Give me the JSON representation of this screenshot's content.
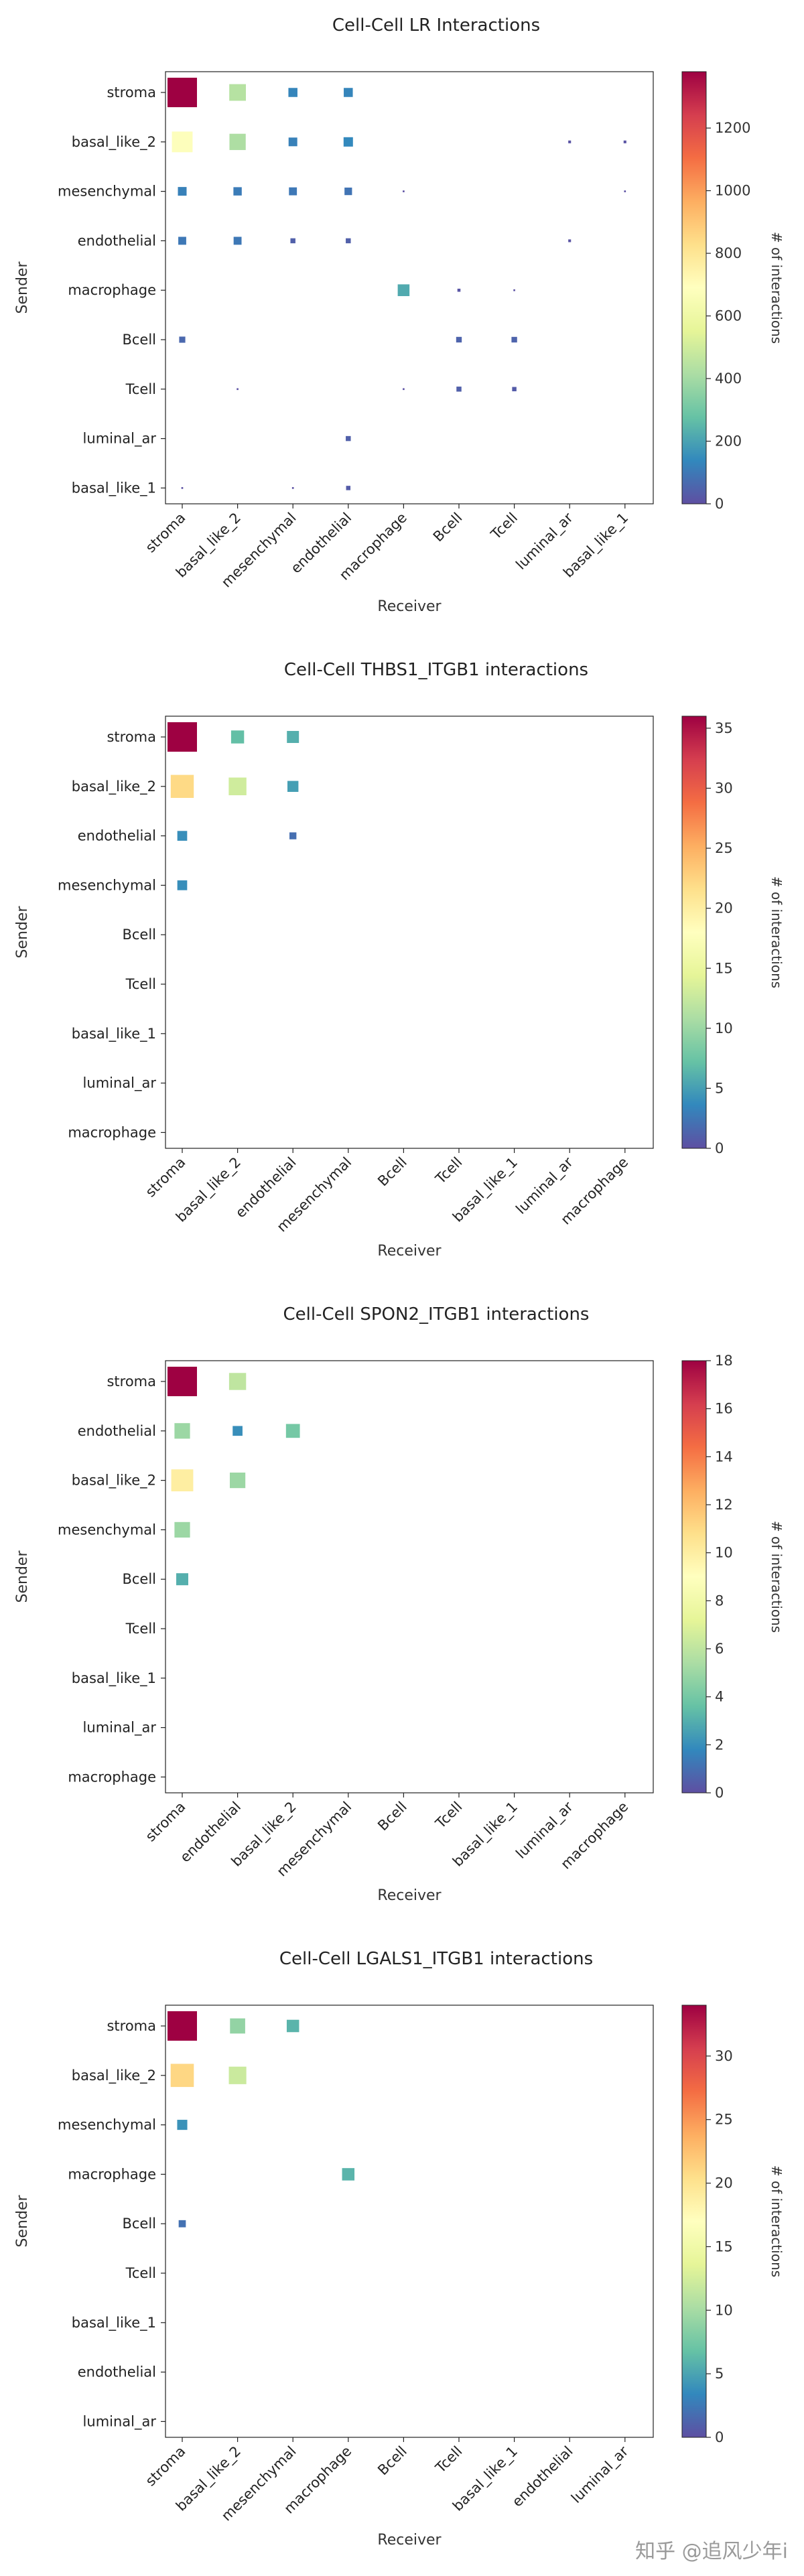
{
  "chart_data": [
    {
      "type": "heatmap",
      "title": "Cell-Cell LR Interactions",
      "xlabel": "Receiver",
      "ylabel": "Sender",
      "colorbar_label": "# of interactions",
      "colorbar_ticks": [
        0,
        200,
        400,
        600,
        800,
        1000,
        1200
      ],
      "vmax": 1380,
      "senders": [
        "stroma",
        "basal_like_2",
        "mesenchymal",
        "endothelial",
        "macrophage",
        "Bcell",
        "Tcell",
        "luminal_ar",
        "basal_like_1"
      ],
      "receivers": [
        "stroma",
        "basal_like_2",
        "mesenchymal",
        "endothelial",
        "macrophage",
        "Bcell",
        "Tcell",
        "luminal_ar",
        "basal_like_1"
      ],
      "cells": [
        [
          0,
          0,
          1380
        ],
        [
          0,
          1,
          440
        ],
        [
          0,
          2,
          130
        ],
        [
          0,
          3,
          130
        ],
        [
          1,
          0,
          680
        ],
        [
          1,
          1,
          420
        ],
        [
          1,
          2,
          120
        ],
        [
          1,
          3,
          140
        ],
        [
          1,
          7,
          12
        ],
        [
          1,
          8,
          12
        ],
        [
          2,
          0,
          120
        ],
        [
          2,
          1,
          110
        ],
        [
          2,
          2,
          100
        ],
        [
          2,
          3,
          90
        ],
        [
          2,
          4,
          5
        ],
        [
          2,
          8,
          5
        ],
        [
          3,
          0,
          100
        ],
        [
          3,
          1,
          100
        ],
        [
          3,
          2,
          40
        ],
        [
          3,
          3,
          40
        ],
        [
          3,
          7,
          12
        ],
        [
          4,
          4,
          220
        ],
        [
          4,
          5,
          15
        ],
        [
          4,
          6,
          5
        ],
        [
          5,
          0,
          60
        ],
        [
          5,
          5,
          50
        ],
        [
          5,
          6,
          50
        ],
        [
          6,
          1,
          5
        ],
        [
          6,
          4,
          5
        ],
        [
          6,
          5,
          40
        ],
        [
          6,
          6,
          30
        ],
        [
          7,
          3,
          40
        ],
        [
          8,
          0,
          5
        ],
        [
          8,
          2,
          5
        ],
        [
          8,
          3,
          30
        ]
      ]
    },
    {
      "type": "heatmap",
      "title": "Cell-Cell THBS1_ITGB1 interactions",
      "xlabel": "Receiver",
      "ylabel": "Sender",
      "colorbar_label": "# of interactions",
      "colorbar_ticks": [
        0,
        5,
        10,
        15,
        20,
        25,
        30,
        35
      ],
      "vmax": 36,
      "senders": [
        "stroma",
        "basal_like_2",
        "endothelial",
        "mesenchymal",
        "Bcell",
        "Tcell",
        "basal_like_1",
        "luminal_ar",
        "macrophage"
      ],
      "receivers": [
        "stroma",
        "basal_like_2",
        "endothelial",
        "mesenchymal",
        "Bcell",
        "Tcell",
        "basal_like_1",
        "luminal_ar",
        "macrophage"
      ],
      "cells": [
        [
          0,
          0,
          36
        ],
        [
          0,
          1,
          7
        ],
        [
          0,
          2,
          6
        ],
        [
          1,
          0,
          22
        ],
        [
          1,
          1,
          13
        ],
        [
          1,
          2,
          5
        ],
        [
          2,
          0,
          4
        ],
        [
          2,
          2,
          2
        ],
        [
          3,
          0,
          4
        ]
      ]
    },
    {
      "type": "heatmap",
      "title": "Cell-Cell SPON2_ITGB1 interactions",
      "xlabel": "Receiver",
      "ylabel": "Sender",
      "colorbar_label": "# of interactions",
      "colorbar_ticks": [
        0,
        2,
        4,
        6,
        8,
        10,
        12,
        14,
        16,
        18
      ],
      "vmax": 18,
      "senders": [
        "stroma",
        "endothelial",
        "basal_like_2",
        "mesenchymal",
        "Bcell",
        "Tcell",
        "basal_like_1",
        "luminal_ar",
        "macrophage"
      ],
      "receivers": [
        "stroma",
        "endothelial",
        "basal_like_2",
        "mesenchymal",
        "Bcell",
        "Tcell",
        "basal_like_1",
        "luminal_ar",
        "macrophage"
      ],
      "cells": [
        [
          0,
          0,
          18
        ],
        [
          0,
          1,
          6
        ],
        [
          1,
          0,
          5
        ],
        [
          1,
          1,
          2
        ],
        [
          1,
          2,
          4
        ],
        [
          2,
          0,
          10
        ],
        [
          2,
          1,
          5
        ],
        [
          3,
          0,
          5
        ],
        [
          4,
          0,
          3
        ]
      ]
    },
    {
      "type": "heatmap",
      "title": "Cell-Cell LGALS1_ITGB1 interactions",
      "xlabel": "Receiver",
      "ylabel": "Sender",
      "colorbar_label": "# of interactions",
      "colorbar_ticks": [
        0,
        5,
        10,
        15,
        20,
        25,
        30
      ],
      "vmax": 34,
      "senders": [
        "stroma",
        "basal_like_2",
        "mesenchymal",
        "macrophage",
        "Bcell",
        "Tcell",
        "basal_like_1",
        "endothelial",
        "luminal_ar"
      ],
      "receivers": [
        "stroma",
        "basal_like_2",
        "mesenchymal",
        "macrophage",
        "Bcell",
        "Tcell",
        "basal_like_1",
        "endothelial",
        "luminal_ar"
      ],
      "cells": [
        [
          0,
          0,
          34
        ],
        [
          0,
          1,
          9
        ],
        [
          0,
          2,
          6
        ],
        [
          1,
          0,
          21
        ],
        [
          1,
          1,
          12
        ],
        [
          2,
          0,
          4
        ],
        [
          3,
          3,
          6
        ],
        [
          4,
          0,
          2
        ]
      ]
    }
  ],
  "watermark": "知乎 @追风少年i"
}
